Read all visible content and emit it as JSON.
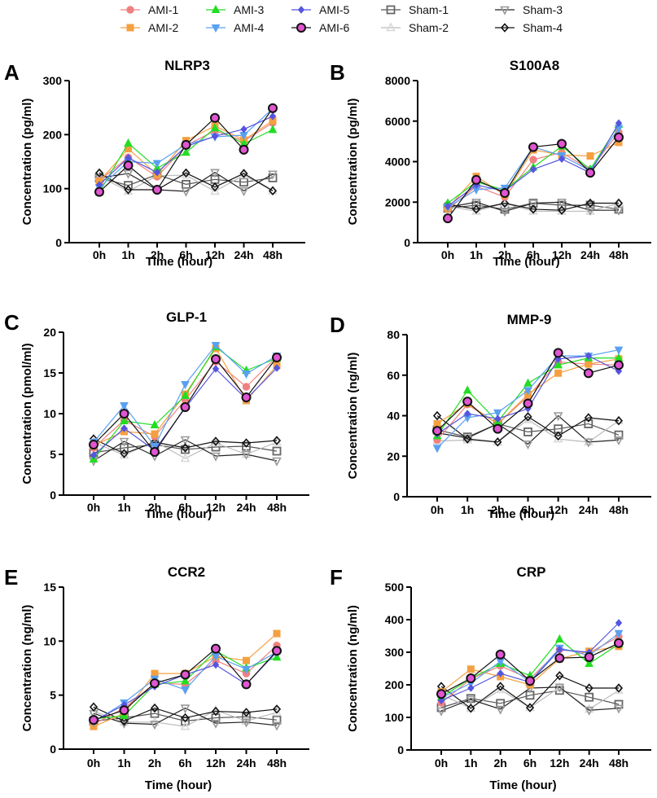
{
  "legend": {
    "entries": [
      {
        "name": "AMI-1",
        "color": "#f08080",
        "marker": "circle",
        "fill": "#f08080",
        "stroke": "#f08080"
      },
      {
        "name": "AMI-2",
        "color": "#f5a040",
        "marker": "square",
        "fill": "#f5a040",
        "stroke": "#f5a040"
      },
      {
        "name": "AMI-3",
        "color": "#22dd22",
        "marker": "triangle-up",
        "fill": "#22dd22",
        "stroke": "#22dd22"
      },
      {
        "name": "AMI-4",
        "color": "#5aa0f0",
        "marker": "triangle-down",
        "fill": "#5aa0f0",
        "stroke": "#5aa0f0"
      },
      {
        "name": "AMI-5",
        "color": "#5555e0",
        "marker": "diamond",
        "fill": "#5555e0",
        "stroke": "#5555e0"
      },
      {
        "name": "AMI-6",
        "color": "#111111",
        "marker": "circle-big",
        "fill": "#e055d0",
        "stroke": "#111111"
      },
      {
        "name": "Sham-1",
        "color": "#555555",
        "marker": "square-open",
        "fill": "#ffffff",
        "stroke": "#666666"
      },
      {
        "name": "Sham-2",
        "color": "#bbbbbb",
        "marker": "triangle-up-open",
        "fill": "#ffffff",
        "stroke": "#d8d8d8"
      },
      {
        "name": "Sham-3",
        "color": "#222222",
        "marker": "triangle-down-open",
        "fill": "#ffffff",
        "stroke": "#999999"
      },
      {
        "name": "Sham-4",
        "color": "#111111",
        "marker": "diamond-open",
        "fill": "#ffffff",
        "stroke": "#111111"
      }
    ]
  },
  "chart_data": [
    {
      "type": "line",
      "panel_label": "A",
      "title": "NLRP3",
      "xlabel": "Time (hour)",
      "ylabel": "Concentration (pg/ml)",
      "categories": [
        "0h",
        "1h",
        "2h",
        "6h",
        "12h",
        "24h",
        "48h"
      ],
      "ylim": [
        0,
        300
      ],
      "yticks": [
        0,
        100,
        200,
        300
      ],
      "series": [
        {
          "name": "AMI-1",
          "values": [
            115,
            158,
            122,
            180,
            207,
            188,
            222
          ]
        },
        {
          "name": "AMI-2",
          "values": [
            113,
            174,
            126,
            189,
            216,
            190,
            226
          ]
        },
        {
          "name": "AMI-3",
          "values": [
            93,
            184,
            138,
            167,
            212,
            183,
            209
          ]
        },
        {
          "name": "AMI-4",
          "values": [
            102,
            150,
            147,
            182,
            196,
            199,
            248
          ]
        },
        {
          "name": "AMI-5",
          "values": [
            107,
            157,
            130,
            178,
            197,
            210,
            234
          ]
        },
        {
          "name": "AMI-6",
          "values": [
            94,
            143,
            98,
            181,
            231,
            172,
            249
          ]
        },
        {
          "name": "Sham-1",
          "values": [
            120,
            106,
            126,
            108,
            117,
            112,
            120
          ]
        },
        {
          "name": "Sham-2",
          "values": [
            123,
            95,
            124,
            125,
            95,
            125,
            96
          ]
        },
        {
          "name": "Sham-3",
          "values": [
            120,
            128,
            98,
            95,
            130,
            96,
            127
          ]
        },
        {
          "name": "Sham-4",
          "values": [
            129,
            98,
            98,
            129,
            103,
            128,
            96
          ]
        }
      ]
    },
    {
      "type": "line",
      "panel_label": "B",
      "title": "S100A8",
      "xlabel": "Time (hour)",
      "ylabel": "Concentration (pg/ml)",
      "categories": [
        "0h",
        "1h",
        "2h",
        "6h",
        "12h",
        "24h",
        "48h"
      ],
      "ylim": [
        0,
        8000
      ],
      "yticks": [
        0,
        2000,
        4000,
        6000,
        8000
      ],
      "series": [
        {
          "name": "AMI-1",
          "values": [
            1650,
            2780,
            2250,
            4100,
            4450,
            3600,
            5450
          ]
        },
        {
          "name": "AMI-2",
          "values": [
            1700,
            3270,
            2350,
            4580,
            4330,
            4280,
            4950
          ]
        },
        {
          "name": "AMI-3",
          "values": [
            1950,
            3000,
            2600,
            3720,
            4760,
            3620,
            5830
          ]
        },
        {
          "name": "AMI-4",
          "values": [
            1750,
            2620,
            2700,
            4720,
            4300,
            3550,
            5650
          ]
        },
        {
          "name": "AMI-5",
          "values": [
            1800,
            2850,
            2550,
            3620,
            4130,
            3450,
            5900
          ]
        },
        {
          "name": "AMI-6",
          "values": [
            1200,
            3100,
            2450,
            4720,
            4880,
            3450,
            5200
          ]
        },
        {
          "name": "Sham-1",
          "values": [
            1700,
            1850,
            1650,
            1950,
            1850,
            1850,
            1650
          ]
        },
        {
          "name": "Sham-2",
          "values": [
            1800,
            1550,
            1950,
            1550,
            1550,
            1550,
            1950
          ]
        },
        {
          "name": "Sham-3",
          "values": [
            1750,
            2000,
            1550,
            1950,
            2000,
            1600,
            1600
          ]
        },
        {
          "name": "Sham-4",
          "values": [
            1900,
            1650,
            1950,
            1650,
            1600,
            1950,
            1950
          ]
        }
      ]
    },
    {
      "type": "line",
      "panel_label": "C",
      "title": "GLP-1",
      "xlabel": "Time (hour)",
      "ylabel": "Concentration (pmol/ml)",
      "categories": [
        "0h",
        "1h",
        "2h",
        "6h",
        "12h",
        "24h",
        "48h"
      ],
      "ylim": [
        0,
        20
      ],
      "yticks": [
        0,
        5,
        10,
        15,
        20
      ],
      "series": [
        {
          "name": "AMI-1",
          "values": [
            5.8,
            9.2,
            7.2,
            11.7,
            16.4,
            13.3,
            17.0
          ]
        },
        {
          "name": "AMI-2",
          "values": [
            6.1,
            7.8,
            7.5,
            12.4,
            18.0,
            11.6,
            15.9
          ]
        },
        {
          "name": "AMI-3",
          "values": [
            4.4,
            9.1,
            8.6,
            12.2,
            18.2,
            15.3,
            16.8
          ]
        },
        {
          "name": "AMI-4",
          "values": [
            6.5,
            11.0,
            6.0,
            13.6,
            18.4,
            14.9,
            17.1
          ]
        },
        {
          "name": "AMI-5",
          "values": [
            4.9,
            8.2,
            5.5,
            10.7,
            15.5,
            11.8,
            15.6
          ]
        },
        {
          "name": "AMI-6",
          "values": [
            6.2,
            10.0,
            5.3,
            10.8,
            16.7,
            12.0,
            16.9
          ]
        },
        {
          "name": "Sham-1",
          "values": [
            5.2,
            5.8,
            6.2,
            5.6,
            5.9,
            6.0,
            5.4
          ]
        },
        {
          "name": "Sham-2",
          "values": [
            6.5,
            4.9,
            6.6,
            4.5,
            6.4,
            5.0,
            6.5
          ]
        },
        {
          "name": "Sham-3",
          "values": [
            4.2,
            6.6,
            4.8,
            6.8,
            4.8,
            5.0,
            4.2
          ]
        },
        {
          "name": "Sham-4",
          "values": [
            6.9,
            5.1,
            6.5,
            5.8,
            6.6,
            6.4,
            6.7
          ]
        }
      ]
    },
    {
      "type": "line",
      "panel_label": "D",
      "title": "MMP-9",
      "xlabel": "Time (hour)",
      "ylabel": "Concentration (ng/ml)",
      "categories": [
        "0h",
        "1h",
        "2h",
        "6h",
        "12h",
        "24h",
        "48h"
      ],
      "ylim": [
        0,
        80
      ],
      "yticks": [
        0,
        20,
        40,
        60,
        80
      ],
      "series": [
        {
          "name": "AMI-1",
          "values": [
            28,
            45.5,
            36,
            49.5,
            66.5,
            65.5,
            65
          ]
        },
        {
          "name": "AMI-2",
          "values": [
            36,
            46,
            36,
            50.5,
            61,
            65.5,
            68
          ]
        },
        {
          "name": "AMI-3",
          "values": [
            30,
            52.5,
            37,
            56,
            65,
            68.5,
            68.5
          ]
        },
        {
          "name": "AMI-4",
          "values": [
            24,
            39,
            41.5,
            52.5,
            69.5,
            69.5,
            72.5
          ]
        },
        {
          "name": "AMI-5",
          "values": [
            31,
            41,
            38.5,
            43.5,
            68,
            69.5,
            62
          ]
        },
        {
          "name": "AMI-6",
          "values": [
            32.5,
            47,
            33.5,
            46,
            71,
            61,
            65
          ]
        },
        {
          "name": "Sham-1",
          "values": [
            33,
            29.5,
            36,
            32,
            33.5,
            36,
            30.5
          ]
        },
        {
          "name": "Sham-2",
          "values": [
            27.5,
            28,
            27,
            38,
            28.5,
            27,
            37.5
          ]
        },
        {
          "name": "Sham-3",
          "values": [
            31.5,
            29,
            36,
            26,
            40,
            27,
            28
          ]
        },
        {
          "name": "Sham-4",
          "values": [
            40,
            28.5,
            27,
            39.5,
            30,
            39,
            37.5
          ]
        }
      ]
    },
    {
      "type": "line",
      "panel_label": "E",
      "title": "CCR2",
      "xlabel": "Time (hour)",
      "ylabel": "Concentration (ng/ml)",
      "categories": [
        "0h",
        "1h",
        "2h",
        "6h",
        "12h",
        "24h",
        "48h"
      ],
      "ylim": [
        0,
        15
      ],
      "yticks": [
        0,
        5,
        10,
        15
      ],
      "series": [
        {
          "name": "AMI-1",
          "values": [
            2.3,
            3.8,
            6.1,
            6.0,
            8.2,
            7.0,
            9.6
          ]
        },
        {
          "name": "AMI-2",
          "values": [
            2.1,
            3.3,
            7.0,
            7.0,
            8.6,
            8.2,
            10.7
          ]
        },
        {
          "name": "AMI-3",
          "values": [
            2.8,
            3.1,
            6.0,
            6.3,
            9.1,
            7.5,
            8.5
          ]
        },
        {
          "name": "AMI-4",
          "values": [
            2.5,
            4.3,
            6.5,
            5.5,
            8.6,
            7.4,
            9.0
          ]
        },
        {
          "name": "AMI-5",
          "values": [
            2.6,
            4.1,
            5.8,
            6.9,
            7.8,
            6.0,
            9.0
          ]
        },
        {
          "name": "AMI-6",
          "values": [
            2.7,
            3.6,
            6.1,
            6.9,
            9.3,
            6.0,
            9.1
          ]
        },
        {
          "name": "Sham-1",
          "values": [
            2.6,
            2.9,
            3.3,
            2.6,
            2.9,
            3.0,
            2.7
          ]
        },
        {
          "name": "Sham-2",
          "values": [
            3.5,
            2.5,
            2.5,
            2.1,
            3.6,
            2.6,
            3.4
          ]
        },
        {
          "name": "Sham-3",
          "values": [
            3.3,
            2.4,
            2.3,
            3.8,
            2.4,
            2.5,
            2.2
          ]
        },
        {
          "name": "Sham-4",
          "values": [
            3.9,
            2.6,
            3.8,
            2.9,
            3.5,
            3.4,
            3.7
          ]
        }
      ]
    },
    {
      "type": "line",
      "panel_label": "F",
      "title": "CRP",
      "xlabel": "Time (hour)",
      "ylabel": "Concentration (ng/ml)",
      "categories": [
        "0h",
        "1h",
        "2h",
        "6h",
        "12h",
        "24h",
        "48h"
      ],
      "ylim": [
        0,
        500
      ],
      "yticks": [
        0,
        100,
        200,
        300,
        400,
        500
      ],
      "series": [
        {
          "name": "AMI-1",
          "values": [
            145,
            218,
            258,
            218,
            308,
            298,
            348
          ]
        },
        {
          "name": "AMI-2",
          "values": [
            178,
            248,
            225,
            200,
            280,
            303,
            318
          ]
        },
        {
          "name": "AMI-3",
          "values": [
            162,
            220,
            265,
            228,
            340,
            265,
            325
          ]
        },
        {
          "name": "AMI-4",
          "values": [
            160,
            205,
            272,
            210,
            313,
            290,
            358
          ]
        },
        {
          "name": "AMI-5",
          "values": [
            152,
            190,
            235,
            208,
            308,
            300,
            390
          ]
        },
        {
          "name": "AMI-6",
          "values": [
            172,
            220,
            293,
            212,
            282,
            285,
            328
          ]
        },
        {
          "name": "Sham-1",
          "values": [
            130,
            158,
            143,
            168,
            183,
            162,
            140
          ]
        },
        {
          "name": "Sham-2",
          "values": [
            170,
            128,
            185,
            130,
            192,
            125,
            183
          ]
        },
        {
          "name": "Sham-3",
          "values": [
            120,
            155,
            125,
            190,
            193,
            122,
            128
          ]
        },
        {
          "name": "Sham-4",
          "values": [
            195,
            128,
            195,
            130,
            228,
            190,
            190
          ]
        }
      ]
    }
  ]
}
